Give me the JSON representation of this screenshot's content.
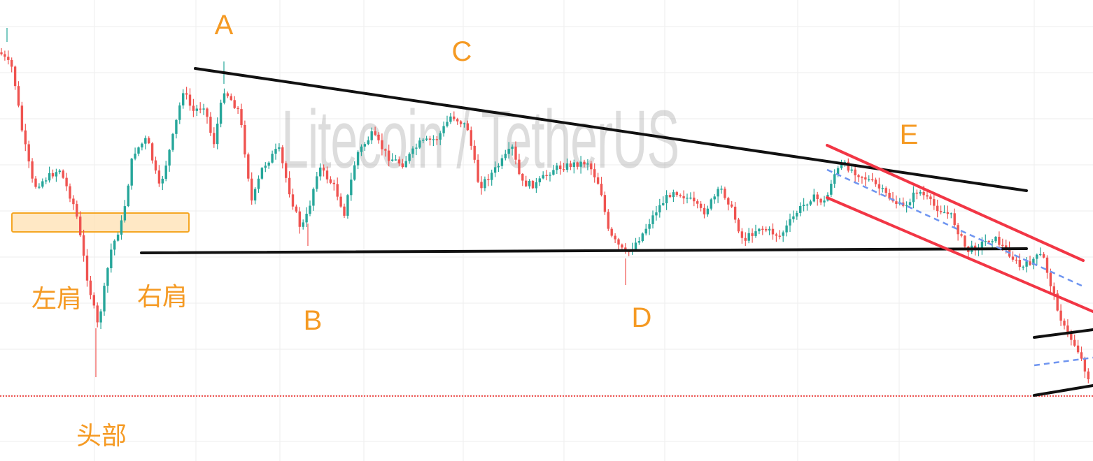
{
  "watermark": "Litecoin / TetherUS",
  "colors": {
    "up": "#26a69a",
    "down": "#ef5350",
    "grid": "#eeeeee",
    "trendline": "#111111",
    "channel": "#f23645",
    "dashed": "#6f95f0",
    "label": "#f59a23",
    "zone_fill": "#ffe0b2",
    "zone_border": "#f5a623",
    "price_line": "#ef5350"
  },
  "wave_labels": [
    "A",
    "B",
    "C",
    "D",
    "E"
  ],
  "pattern_labels": {
    "left_shoulder": "左肩",
    "head": "头部",
    "right_shoulder": "右肩"
  },
  "chart_data": {
    "type": "candlestick",
    "symbol": "Litecoin / TetherUS",
    "annotations": {
      "waves": [
        "A",
        "B",
        "C",
        "D",
        "E"
      ],
      "head_and_shoulders": [
        "左肩",
        "头部",
        "右肩"
      ],
      "drawings": [
        "triangle upper trendline",
        "triangle lower trendline",
        "descending red channel",
        "dashed channel midline",
        "lower black channel",
        "support zone"
      ]
    }
  }
}
